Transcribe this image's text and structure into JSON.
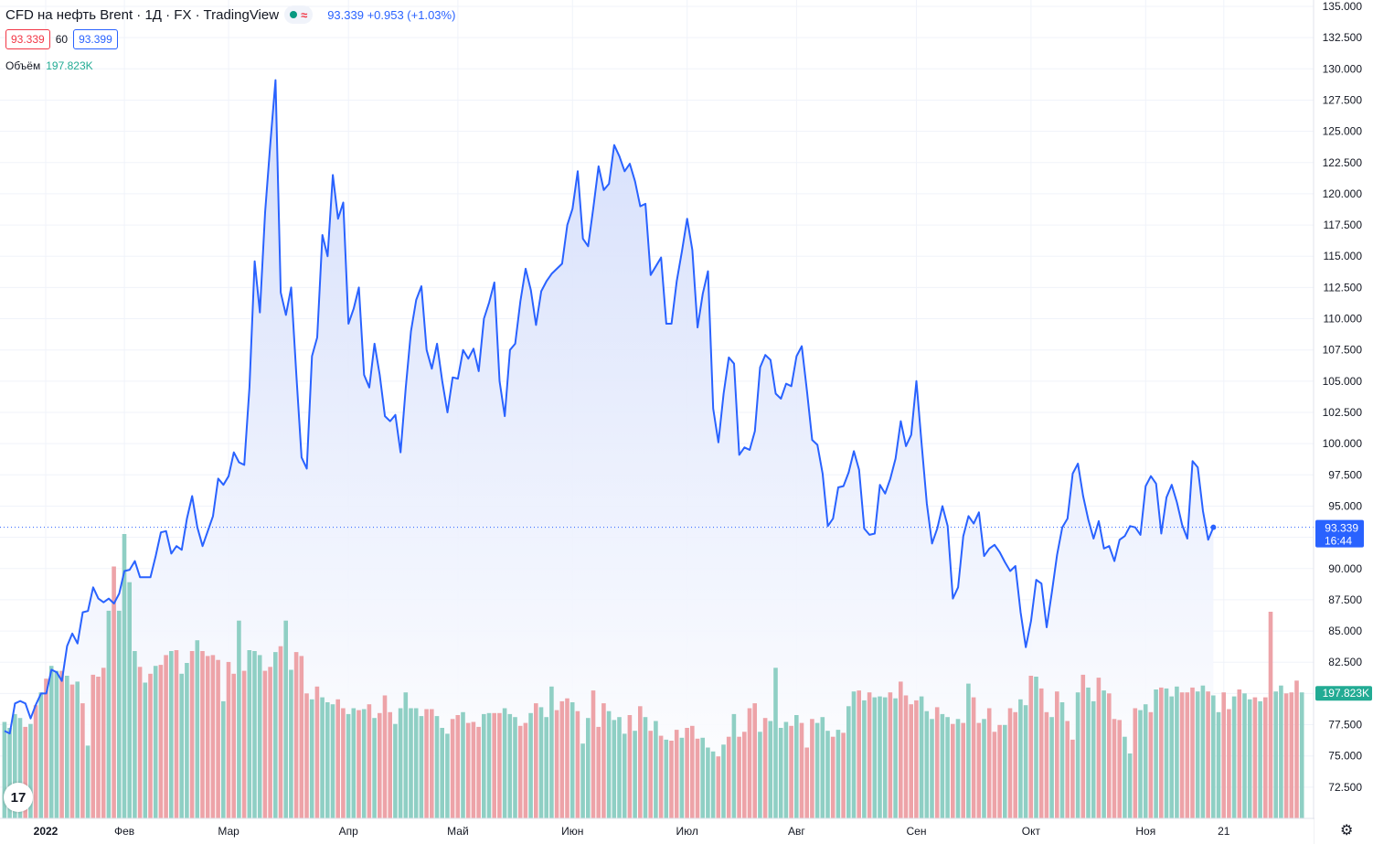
{
  "header": {
    "title": "CFD на нефть Brent · 1Д · FX  · TradingView",
    "change": "93.339 +0.953 (+1.03%)",
    "sell_price": "93.339",
    "spread": "60",
    "buy_price": "93.399",
    "volume_label": "Объём",
    "volume_value": "197.823K"
  },
  "colors": {
    "line": "#2962ff",
    "area_top": "#d3ddfb",
    "vol_up": "#8fcfc4",
    "vol_down": "#eda3a8",
    "grid": "#f0f3fa",
    "axis_text": "#131722",
    "price_label_bg": "#2962ff",
    "volume_label_bg": "#22ab94"
  },
  "chart_data": {
    "type": "area",
    "series": [
      {
        "values": [
          77.0,
          76.8,
          79.2,
          79.4,
          79.2,
          78.0,
          79.1,
          80.0,
          80.0,
          81.9,
          81.7,
          81.0,
          83.8,
          84.8,
          84.0,
          86.5,
          86.6,
          88.5,
          87.6,
          87.3,
          87.6,
          87.2,
          88.0,
          89.8,
          89.9,
          90.6,
          89.3,
          89.3,
          89.3,
          91.0,
          92.9,
          93.0,
          91.2,
          91.8,
          91.5,
          94.0,
          95.8,
          93.3,
          91.8,
          93.0,
          94.2,
          97.2,
          96.7,
          97.4,
          99.3,
          98.5,
          98.3,
          104.5,
          114.6,
          110.5,
          118.5,
          124.0,
          129.1,
          112.1,
          110.3,
          112.5,
          105.5,
          98.9,
          98.0,
          107.0,
          108.5,
          116.7,
          115.0,
          121.5,
          118.0,
          119.3,
          109.6,
          110.8,
          112.5,
          105.5,
          104.5,
          108.0,
          105.5,
          102.2,
          101.8,
          102.3,
          99.3,
          104.5,
          109.0,
          111.5,
          112.6,
          107.5,
          106.0,
          108.0,
          105.0,
          102.5,
          105.3,
          105.2,
          107.5,
          106.8,
          107.6,
          105.8,
          110.0,
          111.3,
          112.9,
          105.0,
          102.2,
          107.5,
          108.0,
          111.4,
          114.0,
          112.3,
          109.5,
          112.2,
          113.0,
          113.6,
          114.0,
          114.4,
          117.5,
          118.8,
          121.8,
          116.4,
          115.8,
          118.9,
          122.2,
          120.3,
          120.8,
          123.9,
          123.0,
          121.8,
          122.4,
          121.0,
          119.0,
          119.2,
          113.5,
          114.2,
          114.9,
          109.6,
          109.6,
          113.0,
          115.4,
          118.0,
          115.5,
          109.3,
          112.0,
          113.8,
          102.8,
          100.1,
          104.0,
          106.9,
          106.4,
          99.1,
          99.7,
          99.5,
          101.0,
          106.1,
          107.1,
          106.7,
          104.0,
          103.6,
          104.8,
          104.6,
          107.0,
          107.8,
          104.2,
          100.3,
          99.9,
          97.6,
          93.4,
          94.0,
          96.5,
          96.6,
          97.7,
          99.4,
          97.9,
          93.2,
          92.7,
          92.8,
          96.7,
          96.0,
          97.2,
          98.8,
          101.8,
          99.8,
          100.7,
          105.0,
          100.0,
          95.2,
          92.0,
          93.2,
          95.0,
          93.4,
          87.6,
          88.5,
          92.6,
          94.2,
          93.6,
          94.5,
          91.0,
          91.6,
          91.9,
          91.3,
          90.5,
          89.8,
          90.2,
          86.5,
          83.7,
          85.8,
          89.1,
          88.8,
          85.3,
          88.1,
          91.1,
          93.3,
          94.0,
          97.6,
          98.4,
          95.8,
          93.9,
          92.4,
          93.8,
          91.6,
          91.8,
          90.6,
          92.3,
          92.6,
          93.4,
          93.3,
          92.7,
          96.6,
          97.4,
          96.8,
          92.8,
          95.7,
          96.7,
          95.3,
          93.5,
          92.4,
          98.6,
          98.1,
          94.6,
          92.3,
          93.3
        ]
      }
    ],
    "volumes": [
      {
        "v": 98,
        "u": 1
      },
      {
        "v": 92,
        "u": 1
      },
      {
        "v": 106,
        "u": 1
      },
      {
        "v": 102,
        "u": 1
      },
      {
        "v": 93,
        "u": 0
      },
      {
        "v": 96,
        "u": 1
      },
      {
        "v": 115,
        "u": 0
      },
      {
        "v": 128,
        "u": 1
      },
      {
        "v": 142,
        "u": 0
      },
      {
        "v": 155,
        "u": 1
      },
      {
        "v": 150,
        "u": 1
      },
      {
        "v": 150,
        "u": 0
      },
      {
        "v": 145,
        "u": 1
      },
      {
        "v": 136,
        "u": 0
      },
      {
        "v": 139,
        "u": 1
      },
      {
        "v": 117,
        "u": 0
      },
      {
        "v": 74,
        "u": 1
      },
      {
        "v": 146,
        "u": 0
      },
      {
        "v": 144,
        "u": 0
      },
      {
        "v": 153,
        "u": 0
      },
      {
        "v": 211,
        "u": 1
      },
      {
        "v": 256,
        "u": 0
      },
      {
        "v": 211,
        "u": 1
      },
      {
        "v": 289,
        "u": 1
      },
      {
        "v": 240,
        "u": 1
      },
      {
        "v": 170,
        "u": 1
      },
      {
        "v": 154,
        "u": 0
      },
      {
        "v": 138,
        "u": 1
      },
      {
        "v": 147,
        "u": 0
      },
      {
        "v": 155,
        "u": 1
      },
      {
        "v": 156,
        "u": 0
      },
      {
        "v": 166,
        "u": 0
      },
      {
        "v": 170,
        "u": 1
      },
      {
        "v": 171,
        "u": 0
      },
      {
        "v": 147,
        "u": 1
      },
      {
        "v": 158,
        "u": 1
      },
      {
        "v": 170,
        "u": 0
      },
      {
        "v": 181,
        "u": 1
      },
      {
        "v": 170,
        "u": 0
      },
      {
        "v": 165,
        "u": 0
      },
      {
        "v": 166,
        "u": 0
      },
      {
        "v": 161,
        "u": 0
      },
      {
        "v": 119,
        "u": 1
      },
      {
        "v": 159,
        "u": 0
      },
      {
        "v": 147,
        "u": 0
      },
      {
        "v": 201,
        "u": 1
      },
      {
        "v": 150,
        "u": 0
      },
      {
        "v": 171,
        "u": 1
      },
      {
        "v": 170,
        "u": 1
      },
      {
        "v": 166,
        "u": 1
      },
      {
        "v": 150,
        "u": 0
      },
      {
        "v": 154,
        "u": 0
      },
      {
        "v": 169,
        "u": 1
      },
      {
        "v": 175,
        "u": 0
      },
      {
        "v": 201,
        "u": 1
      },
      {
        "v": 151,
        "u": 1
      },
      {
        "v": 169,
        "u": 0
      },
      {
        "v": 165,
        "u": 0
      },
      {
        "v": 127,
        "u": 0
      },
      {
        "v": 121,
        "u": 1
      },
      {
        "v": 134,
        "u": 0
      },
      {
        "v": 123,
        "u": 1
      },
      {
        "v": 118,
        "u": 1
      },
      {
        "v": 116,
        "u": 1
      },
      {
        "v": 121,
        "u": 0
      },
      {
        "v": 112,
        "u": 0
      },
      {
        "v": 106,
        "u": 1
      },
      {
        "v": 112,
        "u": 1
      },
      {
        "v": 110,
        "u": 0
      },
      {
        "v": 111,
        "u": 1
      },
      {
        "v": 116,
        "u": 0
      },
      {
        "v": 102,
        "u": 1
      },
      {
        "v": 107,
        "u": 0
      },
      {
        "v": 125,
        "u": 0
      },
      {
        "v": 108,
        "u": 0
      },
      {
        "v": 96,
        "u": 1
      },
      {
        "v": 112,
        "u": 1
      },
      {
        "v": 128,
        "u": 1
      },
      {
        "v": 112,
        "u": 1
      },
      {
        "v": 112,
        "u": 1
      },
      {
        "v": 104,
        "u": 1
      },
      {
        "v": 111,
        "u": 0
      },
      {
        "v": 111,
        "u": 0
      },
      {
        "v": 104,
        "u": 1
      },
      {
        "v": 92,
        "u": 1
      },
      {
        "v": 86,
        "u": 1
      },
      {
        "v": 101,
        "u": 0
      },
      {
        "v": 105,
        "u": 0
      },
      {
        "v": 108,
        "u": 1
      },
      {
        "v": 97,
        "u": 0
      },
      {
        "v": 98,
        "u": 0
      },
      {
        "v": 93,
        "u": 0
      },
      {
        "v": 106,
        "u": 1
      },
      {
        "v": 107,
        "u": 1
      },
      {
        "v": 107,
        "u": 0
      },
      {
        "v": 107,
        "u": 0
      },
      {
        "v": 112,
        "u": 1
      },
      {
        "v": 106,
        "u": 1
      },
      {
        "v": 103,
        "u": 1
      },
      {
        "v": 94,
        "u": 0
      },
      {
        "v": 97,
        "u": 0
      },
      {
        "v": 107,
        "u": 1
      },
      {
        "v": 117,
        "u": 0
      },
      {
        "v": 113,
        "u": 1
      },
      {
        "v": 103,
        "u": 1
      },
      {
        "v": 134,
        "u": 1
      },
      {
        "v": 110,
        "u": 0
      },
      {
        "v": 119,
        "u": 0
      },
      {
        "v": 122,
        "u": 0
      },
      {
        "v": 118,
        "u": 1
      },
      {
        "v": 109,
        "u": 0
      },
      {
        "v": 76,
        "u": 1
      },
      {
        "v": 102,
        "u": 1
      },
      {
        "v": 130,
        "u": 0
      },
      {
        "v": 93,
        "u": 0
      },
      {
        "v": 117,
        "u": 0
      },
      {
        "v": 109,
        "u": 1
      },
      {
        "v": 100,
        "u": 1
      },
      {
        "v": 103,
        "u": 1
      },
      {
        "v": 86,
        "u": 1
      },
      {
        "v": 105,
        "u": 0
      },
      {
        "v": 89,
        "u": 1
      },
      {
        "v": 114,
        "u": 0
      },
      {
        "v": 103,
        "u": 1
      },
      {
        "v": 89,
        "u": 0
      },
      {
        "v": 99,
        "u": 1
      },
      {
        "v": 84,
        "u": 0
      },
      {
        "v": 80,
        "u": 1
      },
      {
        "v": 79,
        "u": 0
      },
      {
        "v": 90,
        "u": 0
      },
      {
        "v": 82,
        "u": 1
      },
      {
        "v": 92,
        "u": 0
      },
      {
        "v": 94,
        "u": 0
      },
      {
        "v": 81,
        "u": 0
      },
      {
        "v": 82,
        "u": 1
      },
      {
        "v": 72,
        "u": 1
      },
      {
        "v": 68,
        "u": 1
      },
      {
        "v": 63,
        "u": 0
      },
      {
        "v": 75,
        "u": 1
      },
      {
        "v": 83,
        "u": 0
      },
      {
        "v": 106,
        "u": 1
      },
      {
        "v": 83,
        "u": 0
      },
      {
        "v": 88,
        "u": 0
      },
      {
        "v": 112,
        "u": 0
      },
      {
        "v": 117,
        "u": 0
      },
      {
        "v": 88,
        "u": 1
      },
      {
        "v": 102,
        "u": 0
      },
      {
        "v": 99,
        "u": 1
      },
      {
        "v": 153,
        "u": 1
      },
      {
        "v": 92,
        "u": 1
      },
      {
        "v": 98,
        "u": 1
      },
      {
        "v": 94,
        "u": 0
      },
      {
        "v": 105,
        "u": 1
      },
      {
        "v": 97,
        "u": 0
      },
      {
        "v": 72,
        "u": 0
      },
      {
        "v": 101,
        "u": 0
      },
      {
        "v": 97,
        "u": 1
      },
      {
        "v": 103,
        "u": 1
      },
      {
        "v": 89,
        "u": 1
      },
      {
        "v": 83,
        "u": 0
      },
      {
        "v": 90,
        "u": 1
      },
      {
        "v": 87,
        "u": 0
      },
      {
        "v": 114,
        "u": 1
      },
      {
        "v": 129,
        "u": 1
      },
      {
        "v": 130,
        "u": 0
      },
      {
        "v": 120,
        "u": 1
      },
      {
        "v": 128,
        "u": 0
      },
      {
        "v": 123,
        "u": 1
      },
      {
        "v": 124,
        "u": 1
      },
      {
        "v": 123,
        "u": 1
      },
      {
        "v": 128,
        "u": 0
      },
      {
        "v": 122,
        "u": 1
      },
      {
        "v": 139,
        "u": 0
      },
      {
        "v": 125,
        "u": 0
      },
      {
        "v": 116,
        "u": 0
      },
      {
        "v": 120,
        "u": 0
      },
      {
        "v": 124,
        "u": 1
      },
      {
        "v": 109,
        "u": 1
      },
      {
        "v": 101,
        "u": 1
      },
      {
        "v": 113,
        "u": 0
      },
      {
        "v": 106,
        "u": 1
      },
      {
        "v": 103,
        "u": 1
      },
      {
        "v": 96,
        "u": 0
      },
      {
        "v": 101,
        "u": 1
      },
      {
        "v": 97,
        "u": 0
      },
      {
        "v": 137,
        "u": 1
      },
      {
        "v": 123,
        "u": 0
      },
      {
        "v": 97,
        "u": 0
      },
      {
        "v": 101,
        "u": 1
      },
      {
        "v": 112,
        "u": 0
      },
      {
        "v": 88,
        "u": 0
      },
      {
        "v": 95,
        "u": 0
      },
      {
        "v": 95,
        "u": 1
      },
      {
        "v": 112,
        "u": 0
      },
      {
        "v": 108,
        "u": 0
      },
      {
        "v": 121,
        "u": 1
      },
      {
        "v": 115,
        "u": 1
      },
      {
        "v": 145,
        "u": 0
      },
      {
        "v": 144,
        "u": 1
      },
      {
        "v": 132,
        "u": 0
      },
      {
        "v": 108,
        "u": 0
      },
      {
        "v": 103,
        "u": 1
      },
      {
        "v": 129,
        "u": 0
      },
      {
        "v": 118,
        "u": 1
      },
      {
        "v": 99,
        "u": 0
      },
      {
        "v": 80,
        "u": 0
      },
      {
        "v": 128,
        "u": 1
      },
      {
        "v": 146,
        "u": 0
      },
      {
        "v": 133,
        "u": 1
      },
      {
        "v": 119,
        "u": 1
      },
      {
        "v": 143,
        "u": 0
      },
      {
        "v": 130,
        "u": 1
      },
      {
        "v": 127,
        "u": 0
      },
      {
        "v": 101,
        "u": 0
      },
      {
        "v": 100,
        "u": 0
      },
      {
        "v": 83,
        "u": 1
      },
      {
        "v": 66,
        "u": 1
      },
      {
        "v": 112,
        "u": 0
      },
      {
        "v": 110,
        "u": 1
      },
      {
        "v": 116,
        "u": 1
      },
      {
        "v": 108,
        "u": 0
      },
      {
        "v": 131,
        "u": 1
      },
      {
        "v": 133,
        "u": 0
      },
      {
        "v": 132,
        "u": 1
      },
      {
        "v": 124,
        "u": 1
      },
      {
        "v": 134,
        "u": 1
      },
      {
        "v": 128,
        "u": 0
      },
      {
        "v": 128,
        "u": 0
      },
      {
        "v": 133,
        "u": 0
      },
      {
        "v": 129,
        "u": 1
      },
      {
        "v": 135,
        "u": 1
      },
      {
        "v": 129,
        "u": 0
      },
      {
        "v": 125,
        "u": 1
      },
      {
        "v": 108,
        "u": 1
      },
      {
        "v": 128,
        "u": 0
      },
      {
        "v": 111,
        "u": 0
      },
      {
        "v": 124,
        "u": 1
      },
      {
        "v": 131,
        "u": 0
      },
      {
        "v": 127,
        "u": 1
      },
      {
        "v": 121,
        "u": 1
      },
      {
        "v": 123,
        "u": 0
      },
      {
        "v": 119,
        "u": 1
      },
      {
        "v": 123,
        "u": 0
      },
      {
        "v": 210,
        "u": 0
      },
      {
        "v": 129,
        "u": 1
      },
      {
        "v": 135,
        "u": 1
      },
      {
        "v": 127,
        "u": 0
      },
      {
        "v": 128,
        "u": 0
      },
      {
        "v": 140,
        "u": 0
      },
      {
        "v": 128,
        "u": 1
      }
    ],
    "ylim": [
      70,
      135
    ],
    "y_ticks": [
      "135.000",
      "132.500",
      "130.000",
      "127.500",
      "125.000",
      "122.500",
      "120.000",
      "117.500",
      "115.000",
      "112.500",
      "110.000",
      "107.500",
      "105.000",
      "102.500",
      "100.000",
      "97.500",
      "95.000",
      "92.500",
      "90.000",
      "87.500",
      "85.000",
      "82.500",
      "80.000",
      "77.500",
      "75.000",
      "72.500"
    ],
    "x_ticks": [
      {
        "label": "2022",
        "i": 0
      },
      {
        "label": "Фев",
        "i": 23
      },
      {
        "label": "Мар",
        "i": 43
      },
      {
        "label": "Апр",
        "i": 66
      },
      {
        "label": "Май",
        "i": 87
      },
      {
        "label": "Июн",
        "i": 109
      },
      {
        "label": "Июл",
        "i": 131
      },
      {
        "label": "Авг",
        "i": 152
      },
      {
        "label": "Сен",
        "i": 175
      },
      {
        "label": "Окт",
        "i": 197
      },
      {
        "label": "Ноя",
        "i": 219
      },
      {
        "label": "21",
        "i": 234
      }
    ],
    "last_price_label": "93.339",
    "last_time_label": "16:44",
    "volume_label": "197.823K",
    "grid": true
  }
}
